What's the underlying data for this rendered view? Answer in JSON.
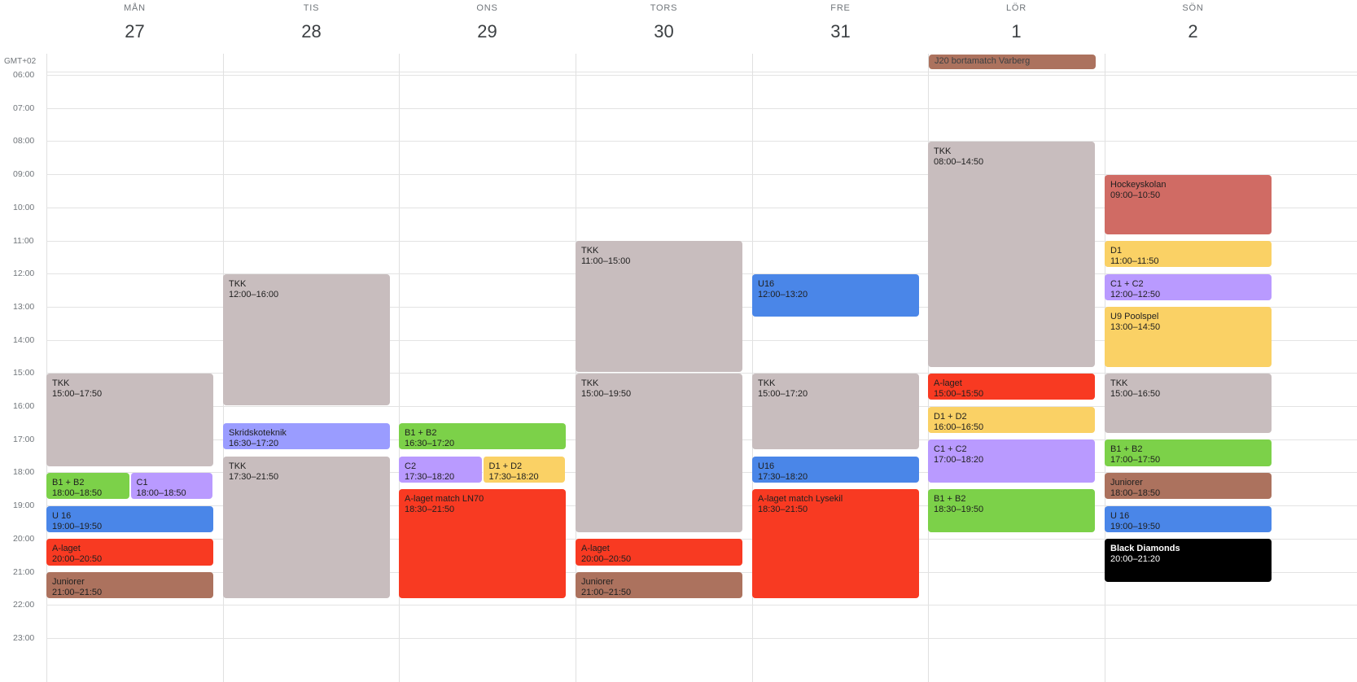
{
  "timezone_label": "GMT+02",
  "days": [
    {
      "dow": "MÅN",
      "num": "27"
    },
    {
      "dow": "TIS",
      "num": "28"
    },
    {
      "dow": "ONS",
      "num": "29"
    },
    {
      "dow": "TORS",
      "num": "30"
    },
    {
      "dow": "FRE",
      "num": "31"
    },
    {
      "dow": "LÖR",
      "num": "1"
    },
    {
      "dow": "SÖN",
      "num": "2"
    }
  ],
  "hours": [
    "06:00",
    "07:00",
    "08:00",
    "09:00",
    "10:00",
    "11:00",
    "12:00",
    "13:00",
    "14:00",
    "15:00",
    "16:00",
    "17:00",
    "18:00",
    "19:00",
    "20:00",
    "21:00",
    "22:00",
    "23:00"
  ],
  "colors": {
    "grey": "#c8bdbe",
    "green": "#7cd149",
    "purple": "#b99aff",
    "blue": "#4a86e8",
    "red": "#f83a22",
    "brown": "#ac725e",
    "lavender": "#9a9cff",
    "yellow": "#fad165",
    "coral": "#d06b64",
    "black": "#000000"
  },
  "allday_events": [
    {
      "day": 5,
      "title": "J20 bortamatch Varberg",
      "color": "brown"
    }
  ],
  "events": [
    {
      "day": 0,
      "title": "TKK",
      "time": "15:00–17:50",
      "color": "grey"
    },
    {
      "day": 0,
      "title": "B1 + B2",
      "time": "18:00–18:50",
      "color": "green",
      "col": 0,
      "cols": 2
    },
    {
      "day": 0,
      "title": "C1",
      "time": "18:00–18:50",
      "color": "purple",
      "col": 1,
      "cols": 2
    },
    {
      "day": 0,
      "title": "U 16",
      "time": "19:00–19:50",
      "color": "blue"
    },
    {
      "day": 0,
      "title": "A-laget",
      "time": "20:00–20:50",
      "color": "red"
    },
    {
      "day": 0,
      "title": "Juniorer",
      "time": "21:00–21:50",
      "color": "brown"
    },
    {
      "day": 1,
      "title": "TKK",
      "time": "12:00–16:00",
      "color": "grey"
    },
    {
      "day": 1,
      "title": "Skridskoteknik",
      "time": "16:30–17:20",
      "color": "lavender"
    },
    {
      "day": 1,
      "title": "TKK",
      "time": "17:30–21:50",
      "color": "grey"
    },
    {
      "day": 2,
      "title": "B1 + B2",
      "time": "16:30–17:20",
      "color": "green"
    },
    {
      "day": 2,
      "title": "C2",
      "time": "17:30–18:20",
      "color": "purple",
      "col": 0,
      "cols": 2
    },
    {
      "day": 2,
      "title": "D1 + D2",
      "time": "17:30–18:20",
      "color": "yellow",
      "col": 1,
      "cols": 2
    },
    {
      "day": 2,
      "title": "A-laget match LN70",
      "time": "18:30–21:50",
      "color": "red"
    },
    {
      "day": 3,
      "title": "TKK",
      "time": "11:00–15:00",
      "color": "grey"
    },
    {
      "day": 3,
      "title": "TKK",
      "time": "15:00–19:50",
      "color": "grey"
    },
    {
      "day": 3,
      "title": "A-laget",
      "time": "20:00–20:50",
      "color": "red"
    },
    {
      "day": 3,
      "title": "Juniorer",
      "time": "21:00–21:50",
      "color": "brown"
    },
    {
      "day": 4,
      "title": "U16",
      "time": "12:00–13:20",
      "color": "blue"
    },
    {
      "day": 4,
      "title": "TKK",
      "time": "15:00–17:20",
      "color": "grey"
    },
    {
      "day": 4,
      "title": "U16",
      "time": "17:30–18:20",
      "color": "blue"
    },
    {
      "day": 4,
      "title": "A-laget match Lysekil",
      "time": "18:30–21:50",
      "color": "red"
    },
    {
      "day": 5,
      "title": "TKK",
      "time": "08:00–14:50",
      "color": "grey"
    },
    {
      "day": 5,
      "title": "A-laget",
      "time": "15:00–15:50",
      "color": "red"
    },
    {
      "day": 5,
      "title": "D1 + D2",
      "time": "16:00–16:50",
      "color": "yellow"
    },
    {
      "day": 5,
      "title": "C1 + C2",
      "time": "17:00–18:20",
      "color": "purple"
    },
    {
      "day": 5,
      "title": "B1 + B2",
      "time": "18:30–19:50",
      "color": "green"
    },
    {
      "day": 6,
      "title": "Hockeyskolan",
      "time": "09:00–10:50",
      "color": "coral"
    },
    {
      "day": 6,
      "title": "D1",
      "time": "11:00–11:50",
      "color": "yellow"
    },
    {
      "day": 6,
      "title": "C1 + C2",
      "time": "12:00–12:50",
      "color": "purple"
    },
    {
      "day": 6,
      "title": "U9 Poolspel",
      "time": "13:00–14:50",
      "color": "yellow"
    },
    {
      "day": 6,
      "title": "TKK",
      "time": "15:00–16:50",
      "color": "grey"
    },
    {
      "day": 6,
      "title": "B1 + B2",
      "time": "17:00–17:50",
      "color": "green"
    },
    {
      "day": 6,
      "title": "Juniorer",
      "time": "18:00–18:50",
      "color": "brown"
    },
    {
      "day": 6,
      "title": "U 16",
      "time": "19:00–19:50",
      "color": "blue"
    },
    {
      "day": 6,
      "title": "Black Diamonds",
      "time": "20:00–21:20",
      "color": "black",
      "text_color": "#ffffff",
      "bold_title": true
    }
  ]
}
